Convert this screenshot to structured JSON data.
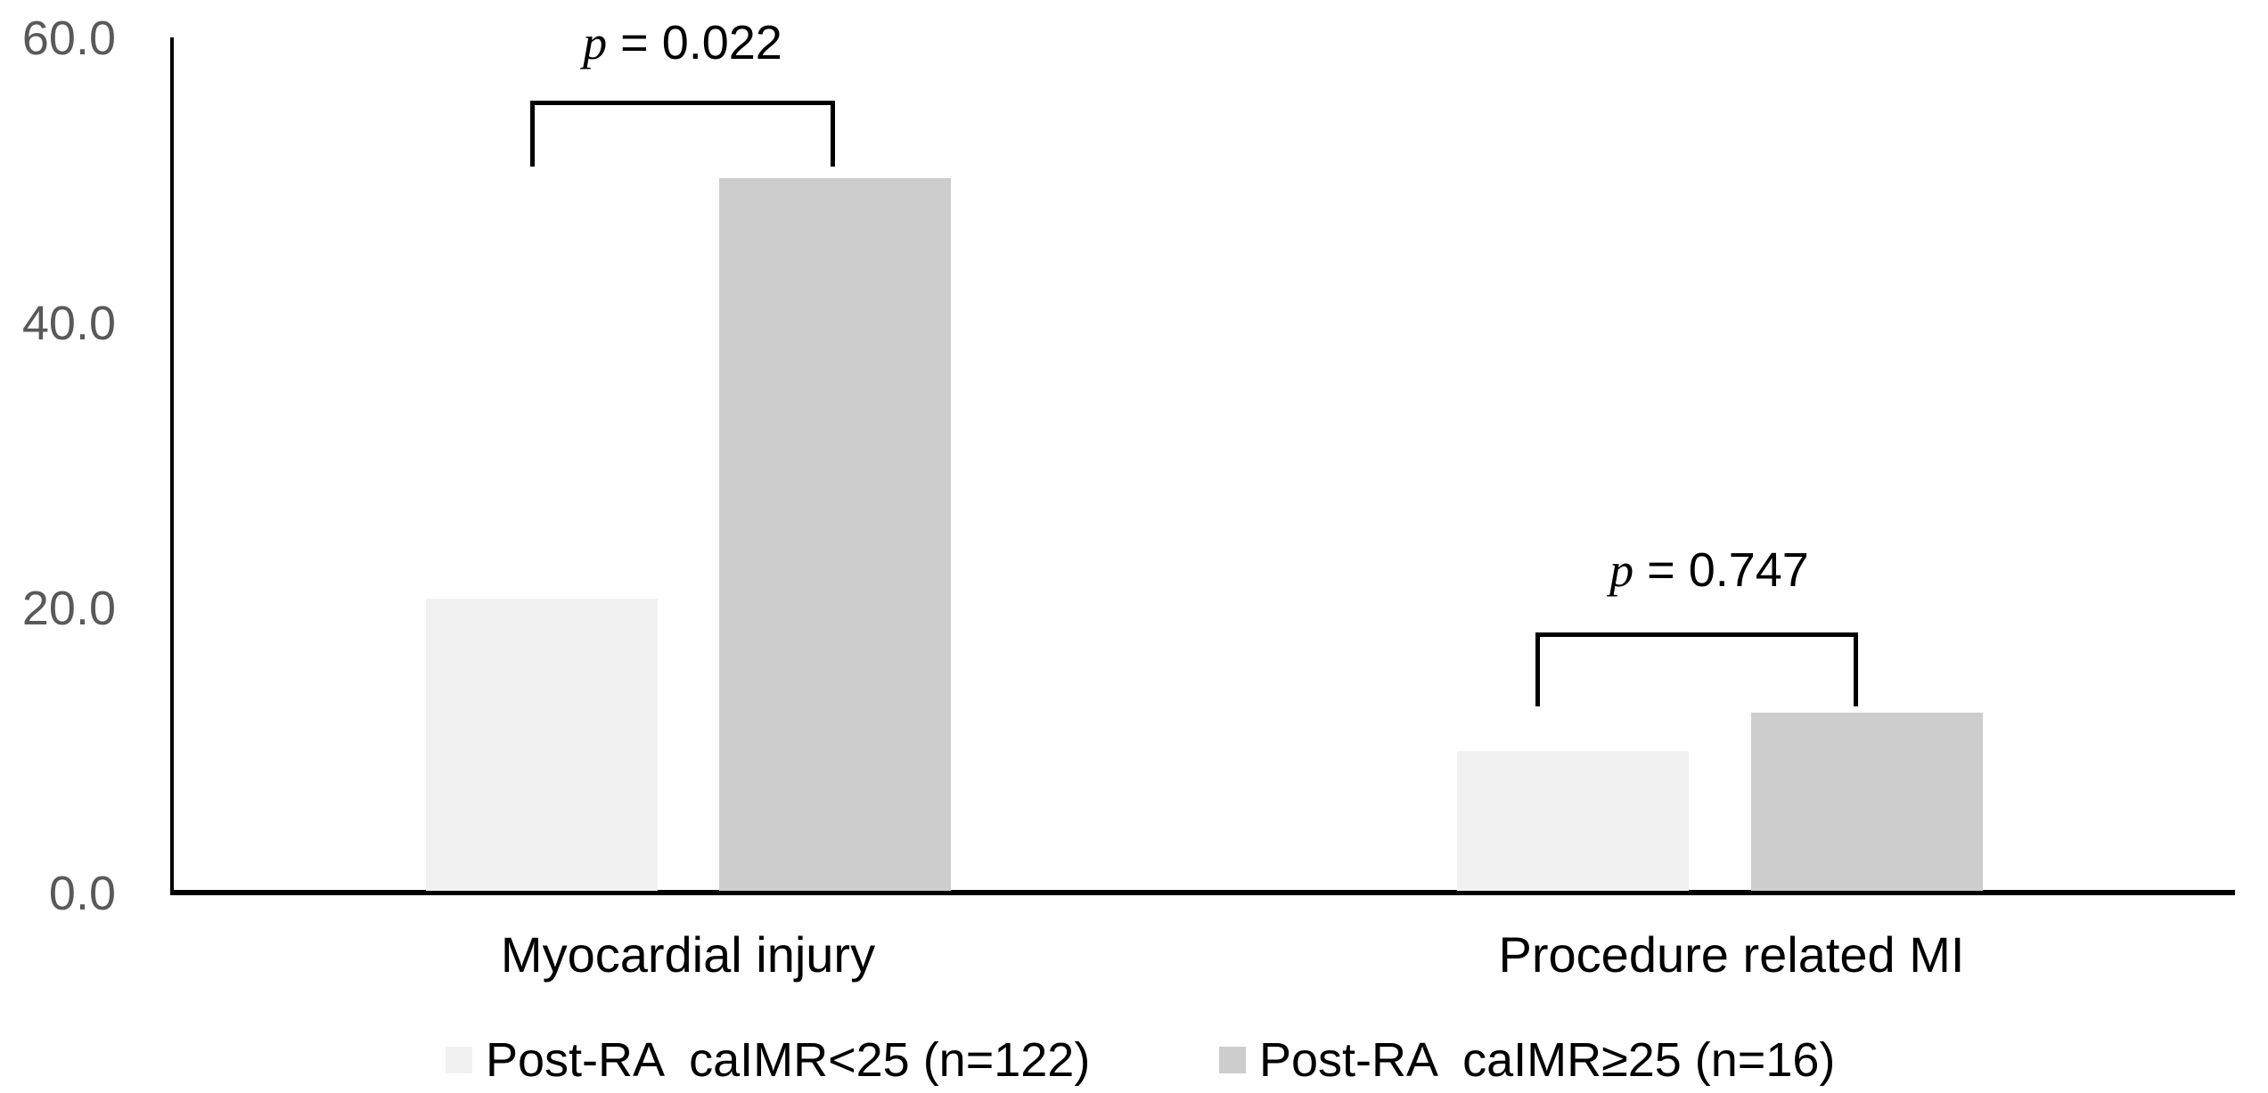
{
  "chart_data": {
    "type": "bar",
    "title": "",
    "xlabel": "",
    "ylabel": "",
    "categories": [
      "Myocardial injury",
      "Procedure related MI"
    ],
    "series": [
      {
        "name": "Post-RA  caIMR<25 (n=122)",
        "values": [
          20.5,
          9.8
        ],
        "color": "#f1f1f1"
      },
      {
        "name": "Post-RA  caIMR≥25 (n=16)",
        "values": [
          50.0,
          12.5
        ],
        "color": "#cdcdcd"
      }
    ],
    "ylim": [
      0,
      60
    ],
    "yticks": [
      "60.0",
      "40.0",
      "20.0",
      "0.0"
    ],
    "grid": false,
    "legend_position": "bottom",
    "axis_color": "#000000",
    "tick_label_color": "#595959",
    "annotations": [
      {
        "category": "Myocardial injury",
        "symbol": "p",
        "rest": " = 0.022",
        "full": "p = 0.022"
      },
      {
        "category": "Procedure related MI",
        "symbol": "p",
        "rest": " = 0.747",
        "full": "p = 0.747"
      }
    ]
  }
}
